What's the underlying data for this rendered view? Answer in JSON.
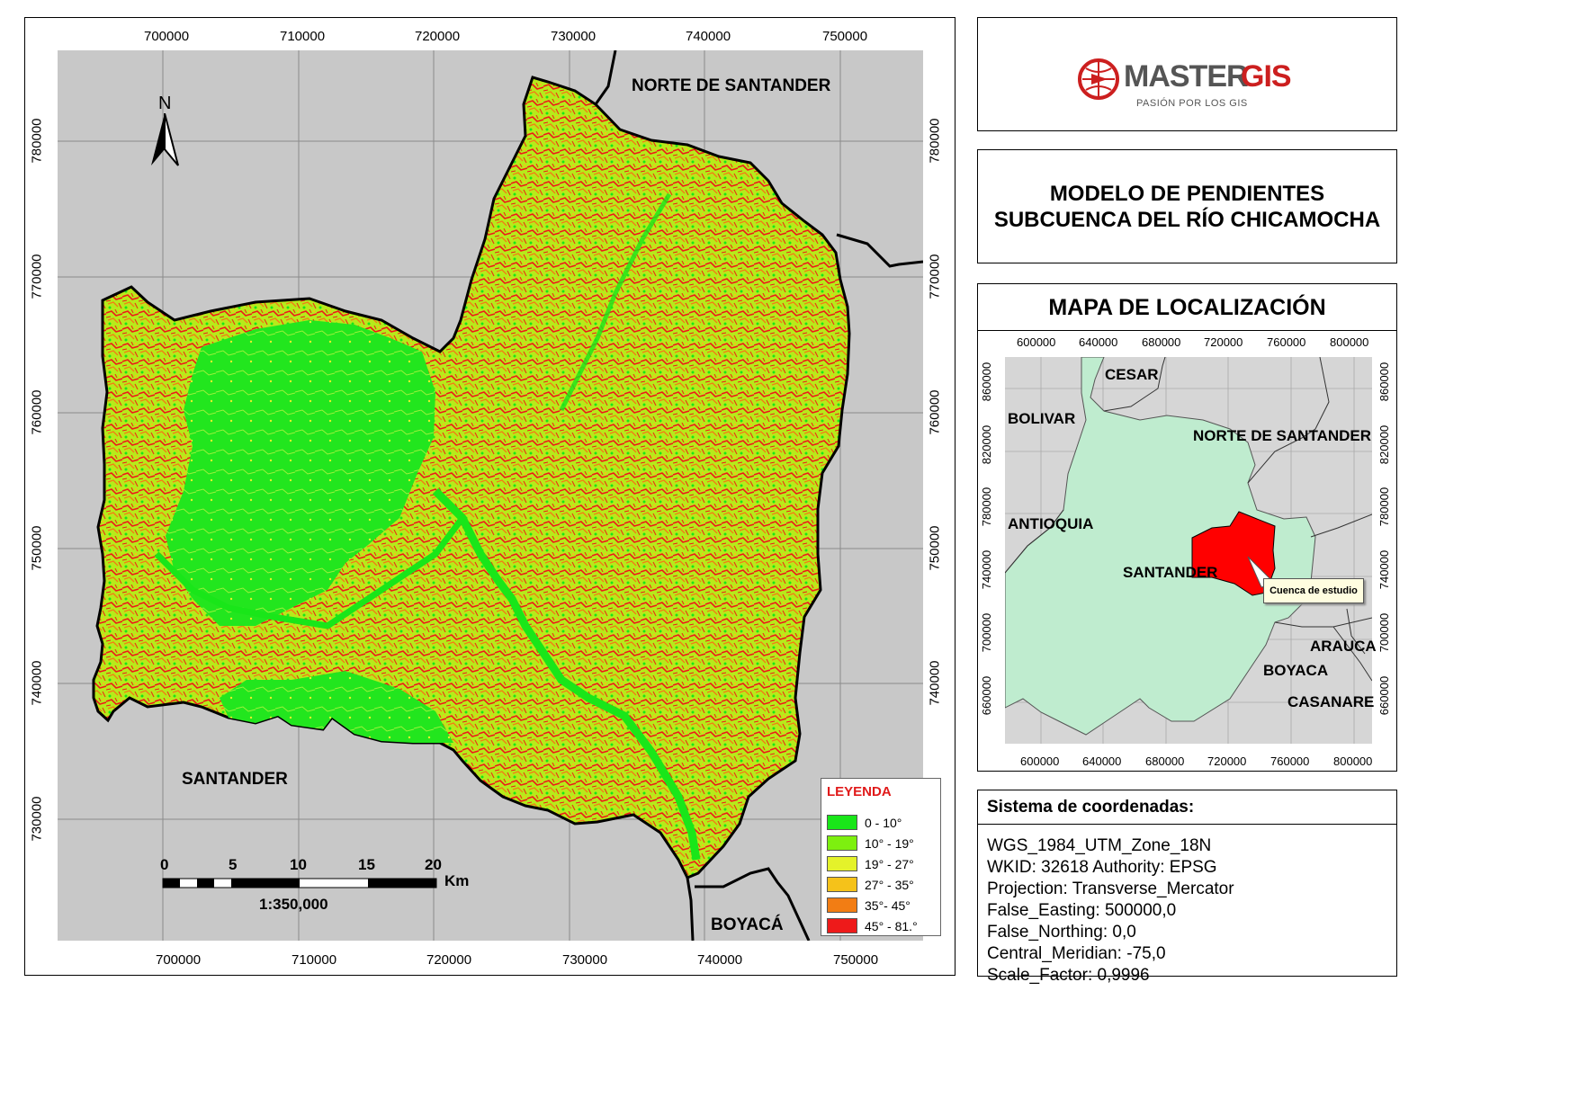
{
  "main_map": {
    "x_ticks": [
      "700000",
      "710000",
      "720000",
      "730000",
      "740000",
      "750000"
    ],
    "y_ticks": [
      "780000",
      "770000",
      "760000",
      "750000",
      "740000",
      "730000"
    ],
    "labels": {
      "norte": "NORTE DE SANTANDER",
      "santander": "SANTANDER",
      "boyaca": "BOYACÁ"
    },
    "north_arrow": "N",
    "scale_bar": {
      "ticks": [
        "0",
        "5",
        "10",
        "15",
        "20"
      ],
      "unit": "Km",
      "ratio": "1:350,000"
    },
    "legend": {
      "title": "LEYENDA",
      "items": [
        {
          "label": "0 - 10°",
          "color": "#19e619"
        },
        {
          "label": "10° - 19°",
          "color": "#7df00f"
        },
        {
          "label": "19° - 27°",
          "color": "#e4f22a"
        },
        {
          "label": "27° - 35°",
          "color": "#f5c21a"
        },
        {
          "label": "35°- 45°",
          "color": "#f27d14"
        },
        {
          "label": "45° - 81.°",
          "color": "#ee1a1a"
        }
      ]
    }
  },
  "logo": {
    "name_dark": "MASTER",
    "name_red": "GIS",
    "tagline": "PASIÓN POR LOS GIS"
  },
  "title": {
    "line1": "MODELO DE PENDIENTES",
    "line2": "SUBCUENCA DEL RÍO CHICAMOCHA"
  },
  "location_map": {
    "title": "MAPA DE LOCALIZACIÓN",
    "x_ticks": [
      "600000",
      "640000",
      "680000",
      "720000",
      "760000",
      "800000"
    ],
    "y_ticks": [
      "860000",
      "820000",
      "780000",
      "740000",
      "700000",
      "660000"
    ],
    "labels": {
      "cesar": "CESAR",
      "bolivar": "BOLIVAR",
      "norte": "NORTE DE SANTANDER",
      "antioquia": "ANTIOQUIA",
      "santander": "SANTANDER",
      "arauca": "ARAUCA",
      "boyaca": "BOYACA",
      "casanare": "CASANARE"
    },
    "callout": "Cuenca de estudio"
  },
  "crs": {
    "heading": "Sistema de coordenadas:",
    "lines": [
      "WGS_1984_UTM_Zone_18N",
      "WKID: 32618 Authority: EPSG",
      "Projection: Transverse_Mercator",
      "False_Easting: 500000,0",
      "False_Northing: 0,0",
      "Central_Meridian: -75,0",
      "Scale_Factor: 0,9996"
    ]
  },
  "colors": {
    "map_bg": "#c8c8c8",
    "santander_fill": "#bfeccf",
    "study_area": "#ff0000",
    "logo_red": "#cc1f1f",
    "logo_dark": "#555555"
  }
}
